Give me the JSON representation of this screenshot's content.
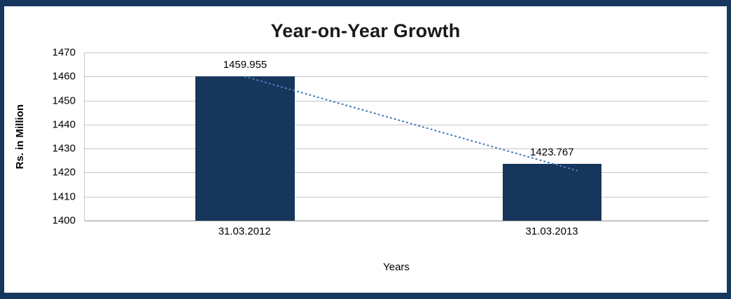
{
  "chart_data": {
    "type": "bar",
    "title": "Year-on-Year Growth",
    "xlabel": "Years",
    "ylabel": "Rs. in Million",
    "categories": [
      "31.03.2012",
      "31.03.2013"
    ],
    "values": [
      1459.955,
      1423.767
    ],
    "data_labels": [
      "1459.955",
      "1423.767"
    ],
    "ylim": [
      1400,
      1470
    ],
    "ytick_step": 10,
    "yticks": [
      1400,
      1410,
      1420,
      1430,
      1440,
      1450,
      1460,
      1470
    ],
    "grid": "horizontal",
    "legend": "none",
    "trendline": {
      "type": "linear",
      "style": "dotted"
    }
  },
  "colors": {
    "bar": "#16365C",
    "frame_border": "#17375E",
    "gridline": "#C6C6C6",
    "axis_line": "#8C8C8C",
    "trendline": "#4A7EBB",
    "text": "#000000"
  }
}
